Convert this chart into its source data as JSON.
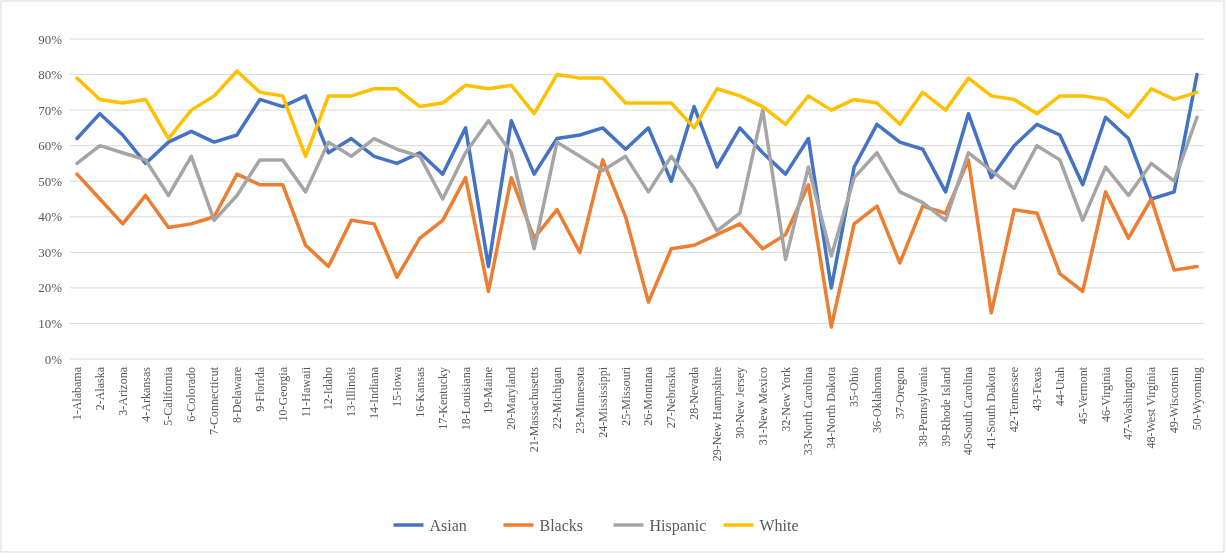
{
  "chart_data": {
    "type": "line",
    "categories": [
      "1-Alabama",
      "2-Alaska",
      "3-Arizona",
      "4-Arkansas",
      "5-California",
      "6-Colorado",
      "7-Connecticut",
      "8-Delaware",
      "9-Florida",
      "10-Georgia",
      "11-Hawaii",
      "12-Idaho",
      "13-Illinois",
      "14-Indiana",
      "15-Iowa",
      "16-Kansas",
      "17-Kentucky",
      "18-Louisiana",
      "19-Maine",
      "20-Maryland",
      "21-Massachusetts",
      "22-Michigan",
      "23-Minnesota",
      "24-Mississippi",
      "25-Missouri",
      "26-Montana",
      "27-Nebraska",
      "28-Nevada",
      "29-New Hampshire",
      "30-New Jersey",
      "31-New Mexico",
      "32-New York",
      "33-North Carolina",
      "34-North Dakota",
      "35-Ohio",
      "36-Oklahoma",
      "37-Oregon",
      "38-Pennsylvania",
      "39-Rhode Island",
      "40-South Carolina",
      "41-South Dakota",
      "42-Tennessee",
      "43-Texas",
      "44-Utah",
      "45-Vermont",
      "46-Virginia",
      "47-Washington",
      "48-West Virginia",
      "49-Wisconsin",
      "50-Wyoming"
    ],
    "series": [
      {
        "name": "Asian",
        "color": "#4472c4",
        "values": [
          62,
          69,
          63,
          55,
          61,
          64,
          61,
          63,
          73,
          71,
          74,
          58,
          62,
          57,
          55,
          58,
          52,
          65,
          26,
          67,
          52,
          62,
          63,
          65,
          59,
          65,
          50,
          71,
          54,
          65,
          58,
          52,
          62,
          20,
          54,
          66,
          61,
          59,
          47,
          69,
          51,
          60,
          66,
          63,
          49,
          68,
          62,
          45,
          47,
          80
        ]
      },
      {
        "name": "Blacks",
        "color": "#ed7d31",
        "values": [
          52,
          45,
          38,
          46,
          37,
          38,
          40,
          52,
          49,
          49,
          32,
          26,
          39,
          38,
          23,
          34,
          39,
          51,
          19,
          51,
          34,
          42,
          30,
          56,
          40,
          16,
          31,
          32,
          35,
          38,
          31,
          35,
          49,
          9,
          38,
          43,
          27,
          43,
          41,
          56,
          13,
          42,
          41,
          24,
          19,
          47,
          34,
          45,
          25,
          26
        ]
      },
      {
        "name": "Hispanic",
        "color": "#a5a5a5",
        "values": [
          55,
          60,
          58,
          56,
          46,
          57,
          39,
          46,
          56,
          56,
          47,
          61,
          57,
          62,
          59,
          57,
          45,
          58,
          67,
          58,
          31,
          61,
          57,
          53,
          57,
          47,
          57,
          48,
          36,
          41,
          70,
          28,
          54,
          29,
          51,
          58,
          47,
          44,
          39,
          58,
          53,
          48,
          60,
          56,
          39,
          54,
          46,
          55,
          50,
          68
        ]
      },
      {
        "name": "White",
        "color": "#ffc000",
        "values": [
          79,
          73,
          72,
          73,
          62,
          70,
          74,
          81,
          75,
          74,
          57,
          74,
          74,
          76,
          76,
          71,
          72,
          77,
          76,
          77,
          69,
          80,
          79,
          79,
          72,
          72,
          72,
          65,
          76,
          74,
          71,
          66,
          74,
          70,
          73,
          72,
          66,
          75,
          70,
          79,
          74,
          73,
          69,
          74,
          74,
          73,
          68,
          76,
          73,
          75
        ]
      }
    ],
    "ylim": [
      0,
      90
    ],
    "yticks": [
      {
        "value": 0,
        "label": "0%"
      },
      {
        "value": 10,
        "label": "10%"
      },
      {
        "value": 20,
        "label": "20%"
      },
      {
        "value": 30,
        "label": "30%"
      },
      {
        "value": 40,
        "label": "40%"
      },
      {
        "value": 50,
        "label": "50%"
      },
      {
        "value": 60,
        "label": "60%"
      },
      {
        "value": 70,
        "label": "70%"
      },
      {
        "value": 80,
        "label": "80%"
      },
      {
        "value": 90,
        "label": "90%"
      }
    ],
    "grid": "y",
    "legend": "bottom",
    "marker": "none",
    "line_style": "solid"
  }
}
